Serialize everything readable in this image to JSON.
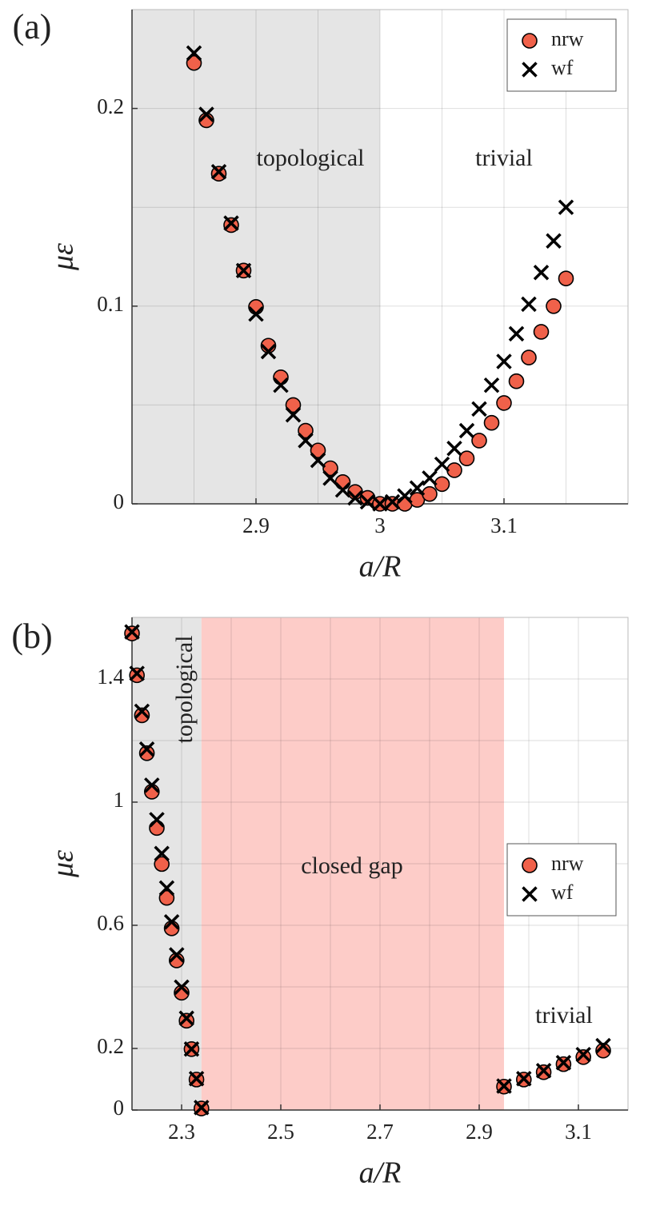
{
  "chart_data": [
    {
      "type": "scatter",
      "label": "(a)",
      "xlabel": "a/R",
      "ylabel": "με",
      "xlim": [
        2.8,
        3.2
      ],
      "xticks": [
        2.9,
        3,
        3.1
      ],
      "xminor": [
        2.85,
        2.95,
        3.05,
        3.15
      ],
      "ylim": [
        0,
        0.25
      ],
      "yticks": [
        0,
        0.1,
        0.2
      ],
      "yminor": [
        0.05,
        0.15
      ],
      "grid": true,
      "legend": "northeast",
      "regions": [
        {
          "xlim": [
            2.8,
            3
          ],
          "color": "#e5e5e5"
        }
      ],
      "annotations": [
        "topological",
        "trivial"
      ],
      "x": [
        2.85,
        2.86,
        2.87,
        2.88,
        2.89,
        2.9,
        2.91,
        2.92,
        2.93,
        2.94,
        2.95,
        2.96,
        2.97,
        2.98,
        2.99,
        3,
        3.01,
        3.02,
        3.03,
        3.04,
        3.05,
        3.06,
        3.07,
        3.08,
        3.09,
        3.1,
        3.11,
        3.12,
        3.13,
        3.14,
        3.15
      ],
      "series": [
        {
          "name": "nrw",
          "marker": "circle",
          "color": "#f0614a",
          "values": [
            0.223,
            0.194,
            0.167,
            0.141,
            0.118,
            0.0996,
            0.08,
            0.064,
            0.05,
            0.037,
            0.027,
            0.018,
            0.011,
            0.006,
            0.003,
            0,
            0,
            0,
            0.002,
            0.005,
            0.01,
            0.017,
            0.023,
            0.032,
            0.041,
            0.051,
            0.062,
            0.074,
            0.087,
            0.1,
            0.114
          ]
        },
        {
          "name": "wf",
          "marker": "cross",
          "color": "#000000",
          "values": [
            0.228,
            0.197,
            0.168,
            0.142,
            0.118,
            0.096,
            0.077,
            0.06,
            0.045,
            0.032,
            0.022,
            0.013,
            0.007,
            0.003,
            0.001,
            0,
            0.001,
            0.004,
            0.008,
            0.013,
            0.02,
            0.028,
            0.037,
            0.048,
            0.06,
            0.072,
            0.086,
            0.101,
            0.117,
            0.133,
            0.15
          ]
        }
      ]
    },
    {
      "type": "scatter",
      "label": "(b)",
      "xlabel": "a/R",
      "ylabel": "με",
      "xlim": [
        2.2,
        3.2
      ],
      "xticks": [
        2.3,
        2.5,
        2.7,
        2.9,
        3.1
      ],
      "xminor": [
        2.4,
        2.6,
        2.8,
        3.0
      ],
      "ylim": [
        0,
        1.6
      ],
      "yticks": [
        0,
        0.2,
        0.6,
        1,
        1.4
      ],
      "yminor": [
        0.4,
        0.8,
        1.2
      ],
      "grid": true,
      "legend": "east",
      "regions": [
        {
          "xlim": [
            2.2,
            2.34
          ],
          "color": "#e5e5e5"
        },
        {
          "xlim": [
            2.34,
            2.95
          ],
          "color": "#fdccc8"
        }
      ],
      "annotations": [
        "topological",
        "closed gap",
        "trivial"
      ],
      "x": [
        2.2,
        2.21,
        2.22,
        2.23,
        2.24,
        2.25,
        2.26,
        2.27,
        2.28,
        2.29,
        2.3,
        2.31,
        2.32,
        2.33,
        2.34,
        2.95,
        2.99,
        3.03,
        3.07,
        3.11,
        3.15
      ],
      "series": [
        {
          "name": "nrw",
          "marker": "circle",
          "color": "#f0614a",
          "values": [
            1.548,
            1.412,
            1.282,
            1.159,
            1.034,
            0.916,
            0.799,
            0.689,
            0.59,
            0.486,
            0.381,
            0.29,
            0.198,
            0.099,
            0.005,
            0.076,
            0.099,
            0.123,
            0.149,
            0.172,
            0.193
          ]
        },
        {
          "name": "wf",
          "marker": "cross",
          "color": "#000000",
          "values": [
            1.553,
            1.418,
            1.295,
            1.172,
            1.055,
            0.943,
            0.833,
            0.721,
            0.611,
            0.504,
            0.399,
            0.298,
            0.198,
            0.102,
            0.008,
            0.078,
            0.102,
            0.128,
            0.154,
            0.18,
            0.209
          ]
        }
      ]
    }
  ]
}
